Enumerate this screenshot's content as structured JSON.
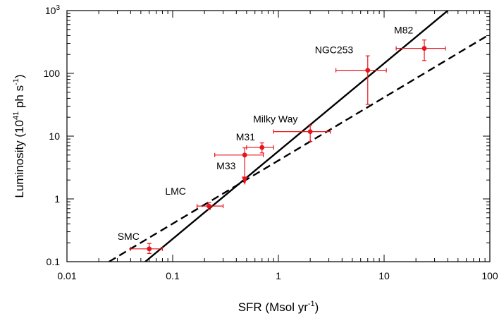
{
  "chart_data": {
    "type": "scatter",
    "xscale": "log",
    "yscale": "log",
    "xlim": [
      0.01,
      100
    ],
    "ylim": [
      0.1,
      1000
    ],
    "xlabel": "SFR (Msol yr",
    "xlabel_sup": "-1",
    "xlabel_end": ")",
    "ylabel": "Luminosity (10",
    "ylabel_sup1": "41",
    "ylabel_mid": " ph s",
    "ylabel_sup2": "-1",
    "ylabel_end": ")",
    "x_ticks": [
      {
        "value": 0.01,
        "label": "0.01"
      },
      {
        "value": 0.1,
        "label": "0.1"
      },
      {
        "value": 1,
        "label": "1"
      },
      {
        "value": 10,
        "label": "10"
      },
      {
        "value": 100,
        "label": "100"
      }
    ],
    "y_ticks": [
      {
        "value": 0.1,
        "label": "0.1"
      },
      {
        "value": 1,
        "label": "1"
      },
      {
        "value": 10,
        "label": "10"
      },
      {
        "value": 100,
        "label": "100"
      },
      {
        "value": 1000,
        "label": "10",
        "sup": "3"
      }
    ],
    "point_color": "#e8141c",
    "line_color": "#000000",
    "points": [
      {
        "name": "SMC",
        "x": 0.06,
        "y": 0.16,
        "x_err": [
          0.04,
          0.08
        ],
        "y_err": [
          0.135,
          0.195
        ]
      },
      {
        "name": "LMC",
        "x": 0.22,
        "y": 0.77,
        "x_err": [
          0.17,
          0.3
        ],
        "y_err": [
          0.68,
          0.87
        ]
      },
      {
        "name": "M33",
        "x": 0.48,
        "y": 5.0,
        "x_err": [
          0.25,
          0.72
        ],
        "y_err": [
          2.2,
          6.5
        ],
        "upper_limit_to": 1.75
      },
      {
        "name": "M31",
        "x": 0.7,
        "y": 6.6,
        "x_err": [
          0.5,
          0.9
        ],
        "y_err": [
          5.4,
          7.8
        ]
      },
      {
        "name": "Milky Way",
        "x": 2.0,
        "y": 11.8,
        "x_err": [
          0.9,
          3.1
        ],
        "y_err": [
          8.2,
          15
        ]
      },
      {
        "name": "NGC253",
        "x": 7.0,
        "y": 112,
        "x_err": [
          3.5,
          10.5
        ],
        "y_err": [
          32,
          190
        ]
      },
      {
        "name": "M82",
        "x": 24,
        "y": 250,
        "x_err": [
          13,
          38
        ],
        "y_err": [
          160,
          340
        ]
      }
    ],
    "lines": [
      {
        "style": "solid",
        "x": [
          0.055,
          40
        ],
        "y": [
          0.1,
          1000
        ]
      },
      {
        "style": "dashed",
        "x": [
          0.025,
          100
        ],
        "y": [
          0.1,
          420
        ]
      }
    ]
  }
}
